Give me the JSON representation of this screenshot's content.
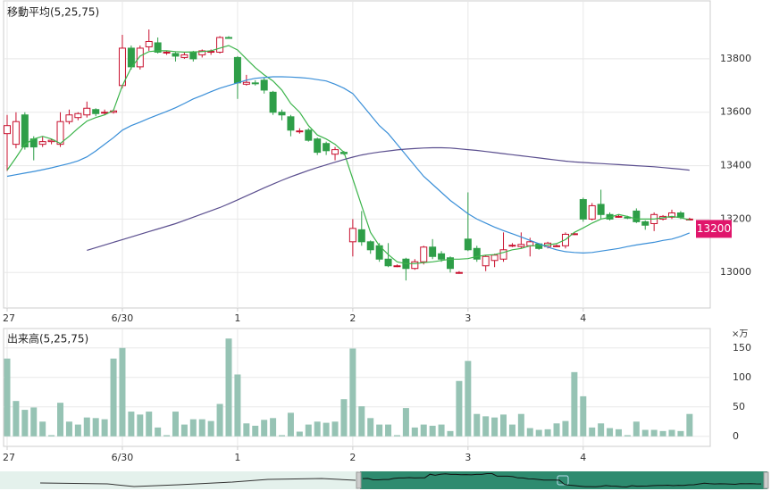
{
  "chart_data": [
    {
      "type": "candlestick",
      "title": "移動平均(5,25,75)",
      "categories": [
        "27",
        null,
        null,
        null,
        null,
        null,
        null,
        null,
        null,
        null,
        null,
        null,
        null,
        "6/30",
        null,
        null,
        null,
        null,
        null,
        null,
        null,
        null,
        null,
        null,
        null,
        null,
        "1",
        null,
        null,
        null,
        null,
        null,
        null,
        null,
        null,
        null,
        null,
        null,
        null,
        "2",
        null,
        null,
        null,
        null,
        null,
        null,
        null,
        null,
        null,
        null,
        null,
        null,
        "3",
        null,
        null,
        null,
        null,
        null,
        null,
        null,
        null,
        null,
        null,
        null,
        null,
        "4",
        null,
        null,
        null,
        null,
        null,
        null,
        null,
        null,
        null,
        null,
        null,
        null
      ],
      "open": [
        13520,
        13480,
        13590,
        13500,
        13480,
        13490,
        13480,
        13565,
        13580,
        13590,
        13610,
        13600,
        13600,
        13700,
        13840,
        13770,
        13845,
        13860,
        13825,
        13820,
        13805,
        13825,
        13815,
        13825,
        13825,
        13880,
        13805,
        13705,
        13710,
        13720,
        13675,
        13600,
        13583,
        13530,
        13533,
        13500,
        13483,
        13443,
        13450,
        13115,
        13160,
        13115,
        13100,
        13050,
        13025,
        13050,
        13015,
        13040,
        13095,
        13070,
        13055,
        13000,
        13125,
        13090,
        13025,
        13045,
        13050,
        13100,
        13097,
        13100,
        13107,
        13097,
        13100,
        13100,
        13145,
        13273,
        13200,
        13255,
        13217,
        13210,
        13207,
        13230,
        13190,
        13183,
        13200,
        13207,
        13223,
        13200
      ],
      "high": [
        13590,
        13600,
        13600,
        13510,
        13510,
        13500,
        13600,
        13610,
        13600,
        13640,
        13615,
        13610,
        13610,
        13890,
        13850,
        13850,
        13910,
        13880,
        13830,
        13825,
        13825,
        13830,
        13835,
        13835,
        13885,
        13885,
        13810,
        13740,
        13720,
        13730,
        13680,
        13610,
        13590,
        13540,
        13540,
        13505,
        13490,
        13470,
        13455,
        13200,
        13230,
        13120,
        13110,
        13110,
        13030,
        13055,
        13050,
        13100,
        13125,
        13080,
        13060,
        13005,
        13300,
        13100,
        13065,
        13070,
        13150,
        13110,
        13150,
        13130,
        13110,
        13115,
        13105,
        13150,
        13150,
        13280,
        13260,
        13310,
        13225,
        13215,
        13212,
        13240,
        13195,
        13225,
        13215,
        13235,
        13230,
        13205
      ],
      "low": [
        13380,
        13465,
        13460,
        13420,
        13470,
        13480,
        13470,
        13555,
        13570,
        13580,
        13585,
        13590,
        13595,
        13690,
        13760,
        13760,
        13830,
        13820,
        13815,
        13790,
        13800,
        13790,
        13805,
        13815,
        13820,
        13875,
        13650,
        13700,
        13700,
        13670,
        13590,
        13570,
        13510,
        13520,
        13490,
        13440,
        13440,
        13420,
        13440,
        13060,
        13100,
        13070,
        13040,
        13020,
        13020,
        12970,
        13010,
        13030,
        13050,
        13040,
        13000,
        12995,
        13080,
        13040,
        13005,
        13020,
        13040,
        13095,
        13090,
        13060,
        13085,
        13090,
        13095,
        13090,
        13140,
        13190,
        13195,
        13200,
        13195,
        13205,
        13200,
        13185,
        13160,
        13155,
        13195,
        13200,
        13200,
        13195
      ],
      "close": [
        13550,
        13565,
        13470,
        13470,
        13490,
        13495,
        13565,
        13590,
        13595,
        13615,
        13595,
        13600,
        13605,
        13840,
        13770,
        13840,
        13865,
        13825,
        13825,
        13810,
        13815,
        13800,
        13830,
        13828,
        13880,
        13878,
        13710,
        13712,
        13708,
        13683,
        13600,
        13590,
        13533,
        13530,
        13495,
        13450,
        13456,
        13460,
        13445,
        13165,
        13115,
        13085,
        13050,
        13025,
        13025,
        13015,
        13040,
        13095,
        13060,
        13050,
        13015,
        13000,
        13085,
        13050,
        13060,
        13065,
        13085,
        13102,
        13105,
        13115,
        13090,
        13110,
        13100,
        13143,
        13145,
        13200,
        13250,
        13217,
        13200,
        13210,
        13205,
        13190,
        13177,
        13217,
        13210,
        13223,
        13207,
        13200
      ],
      "up_color": "#c8102e",
      "down_color": "#2e9e48",
      "series": [
        {
          "color": "#3cb44b",
          "values": [
            13383,
            13430,
            13480,
            13500,
            13510,
            13500,
            13483,
            13510,
            13540,
            13567,
            13580,
            13590,
            13607,
            13700,
            13767,
            13810,
            13827,
            13830,
            13830,
            13827,
            13825,
            13826,
            13827,
            13830,
            13840,
            13850,
            13833,
            13800,
            13767,
            13740,
            13717,
            13683,
            13633,
            13600,
            13550,
            13515,
            13500,
            13480,
            13450,
            13350,
            13250,
            13150,
            13100,
            13067,
            13040,
            13033,
            13033,
            13037,
            13040,
            13045,
            13050,
            13050,
            13052,
            13060,
            13065,
            13067,
            13075,
            13085,
            13090,
            13100,
            13100,
            13103,
            13108,
            13123,
            13150,
            13167,
            13185,
            13200,
            13207,
            13217,
            13210,
            13200,
            13200,
            13200,
            13205,
            13210,
            13205,
            13197
          ]
        },
        {
          "color": "#3a8fd8",
          "values": [
            13360,
            13366,
            13372,
            13378,
            13385,
            13392,
            13400,
            13408,
            13418,
            13433,
            13455,
            13480,
            13505,
            13533,
            13550,
            13563,
            13577,
            13590,
            13603,
            13617,
            13633,
            13650,
            13663,
            13677,
            13690,
            13700,
            13710,
            13720,
            13727,
            13730,
            13733,
            13733,
            13732,
            13730,
            13727,
            13722,
            13717,
            13705,
            13690,
            13670,
            13630,
            13590,
            13550,
            13520,
            13480,
            13440,
            13400,
            13360,
            13330,
            13300,
            13270,
            13245,
            13220,
            13200,
            13185,
            13170,
            13157,
            13145,
            13133,
            13120,
            13108,
            13095,
            13085,
            13078,
            13075,
            13073,
            13075,
            13080,
            13085,
            13090,
            13097,
            13103,
            13108,
            13113,
            13120,
            13125,
            13135,
            13148
          ]
        },
        {
          "color": "#5b4f8f",
          "values": [
            null,
            null,
            null,
            null,
            null,
            null,
            null,
            null,
            null,
            13083,
            13093,
            13103,
            13113,
            13123,
            13133,
            13143,
            13153,
            13163,
            13173,
            13183,
            13195,
            13207,
            13219,
            13231,
            13243,
            13257,
            13272,
            13287,
            13302,
            13317,
            13331,
            13345,
            13358,
            13370,
            13382,
            13393,
            13403,
            13413,
            13423,
            13432,
            13440,
            13446,
            13451,
            13455,
            13459,
            13462,
            13464,
            13466,
            13467,
            13467,
            13466,
            13463,
            13460,
            13457,
            13453,
            13449,
            13445,
            13441,
            13437,
            13433,
            13429,
            13425,
            13421,
            13417,
            13414,
            13412,
            13410,
            13408,
            13406,
            13404,
            13402,
            13400,
            13398,
            13396,
            13393,
            13390,
            13387,
            13383
          ]
        }
      ],
      "ylim": [
        12867,
        14017
      ],
      "yticks": [
        13000,
        13200,
        13400,
        13600,
        13800
      ],
      "grid": true,
      "last_price": 13200,
      "last_price_color": "#e0156b"
    },
    {
      "type": "bar",
      "title": "出来高(5,25,75)",
      "unit": "×万",
      "categories": [
        "27",
        null,
        null,
        null,
        null,
        null,
        null,
        null,
        null,
        null,
        null,
        null,
        null,
        "6/30",
        null,
        null,
        null,
        null,
        null,
        null,
        null,
        null,
        null,
        null,
        null,
        null,
        "1",
        null,
        null,
        null,
        null,
        null,
        null,
        null,
        null,
        null,
        null,
        null,
        null,
        "2",
        null,
        null,
        null,
        null,
        null,
        null,
        null,
        null,
        null,
        null,
        null,
        null,
        "3",
        null,
        null,
        null,
        null,
        null,
        null,
        null,
        null,
        null,
        null,
        null,
        null,
        "4",
        null,
        null,
        null,
        null,
        null,
        null,
        null,
        null,
        null,
        null,
        null,
        null
      ],
      "values": [
        132,
        60,
        45,
        49,
        25,
        2,
        57,
        25,
        20,
        32,
        31,
        29,
        132,
        150,
        42,
        37,
        42,
        15,
        2,
        42,
        20,
        29,
        29,
        26,
        55,
        166,
        105,
        22,
        18,
        28,
        31,
        2,
        40,
        8,
        20,
        25,
        23,
        25,
        63,
        149,
        51,
        31,
        20,
        20,
        2,
        48,
        15,
        20,
        18,
        20,
        9,
        94,
        128,
        38,
        34,
        32,
        37,
        20,
        38,
        14,
        11,
        12,
        22,
        26,
        109,
        68,
        15,
        22,
        14,
        12,
        2,
        25,
        11,
        11,
        9,
        11,
        9,
        38
      ],
      "color": "#96c3b4",
      "ylim": [
        -17,
        183
      ],
      "yticks": [
        0,
        50,
        100,
        150
      ],
      "grid": true
    }
  ]
}
